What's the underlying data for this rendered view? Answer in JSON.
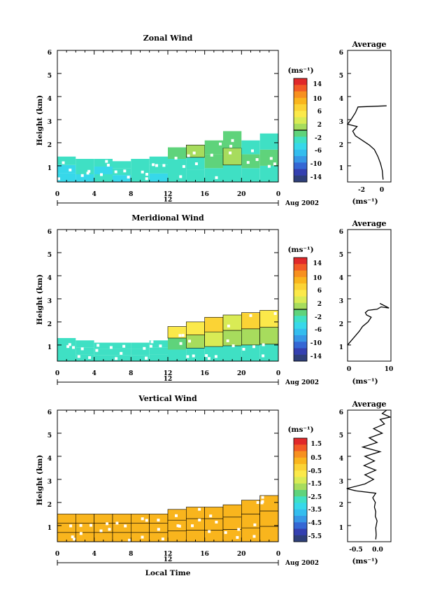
{
  "panels": [
    {
      "key": "zonal",
      "title": "Zonal Wind",
      "avg_title": "Average",
      "ylabel": "Height (km)",
      "xticks": [
        "0",
        "4",
        "8",
        "12",
        "16",
        "20",
        "0"
      ],
      "date_tick": "12",
      "date_label": "Aug 2002",
      "cbar_unit": "(ms⁻¹)",
      "cbar_ticks": [
        "14",
        "10",
        "6",
        "2",
        "-2",
        "-6",
        "-10",
        "-14"
      ],
      "avg_xticks": [
        "-2",
        "0"
      ],
      "avg_xlabel": "(ms⁻¹)"
    },
    {
      "key": "meridional",
      "title": "Meridional Wind",
      "avg_title": "Average",
      "ylabel": "Height (km)",
      "xticks": [
        "0",
        "4",
        "8",
        "12",
        "16",
        "20",
        "0"
      ],
      "date_tick": "12",
      "date_label": "Aug 2002",
      "cbar_unit": "(ms⁻¹)",
      "cbar_ticks": [
        "14",
        "10",
        "6",
        "2",
        "-2",
        "-6",
        "-10",
        "-14"
      ],
      "avg_xticks": [
        "0",
        "10"
      ],
      "avg_xlabel": "(ms⁻¹)"
    },
    {
      "key": "vertical",
      "title": "Vertical Wind",
      "avg_title": "Average",
      "ylabel": "Height (km)",
      "xticks": [
        "0",
        "4",
        "8",
        "12",
        "16",
        "20",
        "0"
      ],
      "date_tick": "12",
      "date_label": "Aug 2002",
      "cbar_unit": "(ms⁻¹)",
      "cbar_ticks": [
        "1.5",
        "0.5",
        "-0.5",
        "-1.5",
        "-2.5",
        "-3.5",
        "-4.5",
        "-5.5"
      ],
      "avg_xticks": [
        "-0.5",
        "0.0"
      ],
      "avg_xlabel": "(ms⁻¹)",
      "xlabel": "Local Time"
    }
  ],
  "yticks": [
    "1",
    "2",
    "3",
    "4",
    "5",
    "6"
  ],
  "colorbar_colors": [
    "#e0282a",
    "#f25a26",
    "#f7901f",
    "#f9b51d",
    "#fbd335",
    "#fbe94a",
    "#d9eb55",
    "#a7dc5d",
    "#5fd37b",
    "#3fe0c4",
    "#37d8ea",
    "#34bdee",
    "#3797e6",
    "#3567d4",
    "#3440b0",
    "#2e3f7a"
  ],
  "chart_data": [
    {
      "type": "heatmap",
      "title": "Zonal Wind",
      "xlabel": "",
      "ylabel": "Height (km)",
      "xlim": [
        0,
        24
      ],
      "ylim": [
        0.3,
        6
      ],
      "x_ticks": [
        0,
        4,
        8,
        12,
        16,
        20,
        24
      ],
      "colorbar_unit": "ms-1",
      "colorbar_range": [
        -16,
        16
      ],
      "colorbar_ticks": [
        14,
        10,
        6,
        2,
        -2,
        -6,
        -10,
        -14
      ],
      "contour_level": 0,
      "columns": [
        {
          "x": 0,
          "top": 1.4,
          "values": [
            -4,
            -4,
            -3
          ]
        },
        {
          "x": 2,
          "top": 1.3,
          "values": [
            -4,
            -3,
            -3
          ]
        },
        {
          "x": 4,
          "top": 1.3,
          "values": [
            -3,
            -4,
            -3
          ]
        },
        {
          "x": 6,
          "top": 1.2,
          "values": [
            -4,
            -3,
            -3
          ]
        },
        {
          "x": 8,
          "top": 1.3,
          "values": [
            -3,
            -3,
            -2
          ]
        },
        {
          "x": 10,
          "top": 1.4,
          "values": [
            -4,
            -2,
            -3
          ]
        },
        {
          "x": 12,
          "top": 1.8,
          "values": [
            -3,
            -2,
            -1
          ]
        },
        {
          "x": 14,
          "top": 1.9,
          "values": [
            -3,
            -2,
            1
          ]
        },
        {
          "x": 16,
          "top": 2.1,
          "values": [
            -2,
            -1,
            0
          ]
        },
        {
          "x": 18,
          "top": 2.5,
          "values": [
            -3,
            1,
            -1
          ]
        },
        {
          "x": 20,
          "top": 2.1,
          "values": [
            -2,
            -1,
            -2
          ]
        },
        {
          "x": 22,
          "top": 2.4,
          "values": [
            -3,
            0,
            -3
          ]
        }
      ]
    },
    {
      "type": "line",
      "title": "Average",
      "xlabel": "(ms-1)",
      "ylabel": "Height (km)",
      "xlim": [
        -4,
        1
      ],
      "ylim": [
        0.3,
        6
      ],
      "x": [
        0.1,
        0.0,
        -0.2,
        -0.5,
        -0.9,
        -1.5,
        -2.3,
        -3.1,
        -3.4,
        -2.9,
        -4.0,
        -3.6,
        -3.1,
        -2.8,
        0.5
      ],
      "y": [
        0.4,
        0.8,
        1.1,
        1.4,
        1.7,
        1.9,
        2.1,
        2.3,
        2.5,
        2.7,
        2.8,
        3.0,
        3.3,
        3.55,
        3.6
      ]
    },
    {
      "type": "heatmap",
      "title": "Meridional Wind",
      "xlabel": "",
      "ylabel": "Height (km)",
      "xlim": [
        0,
        24
      ],
      "ylim": [
        0.3,
        6
      ],
      "x_ticks": [
        0,
        4,
        8,
        12,
        16,
        20,
        24
      ],
      "colorbar_unit": "ms-1",
      "colorbar_range": [
        -16,
        16
      ],
      "colorbar_ticks": [
        14,
        10,
        6,
        2,
        -2,
        -6,
        -10,
        -14
      ],
      "contour_level": 0,
      "columns": [
        {
          "x": 0,
          "top": 1.3,
          "values": [
            -3,
            -3,
            -3
          ]
        },
        {
          "x": 2,
          "top": 1.2,
          "values": [
            -3,
            -3,
            -2
          ]
        },
        {
          "x": 4,
          "top": 1.1,
          "values": [
            -3,
            -3,
            -2
          ]
        },
        {
          "x": 6,
          "top": 1.1,
          "values": [
            -3,
            -3,
            -2
          ]
        },
        {
          "x": 8,
          "top": 1.1,
          "values": [
            -3,
            -2,
            -2
          ]
        },
        {
          "x": 10,
          "top": 1.2,
          "values": [
            -3,
            -2,
            -3
          ]
        },
        {
          "x": 12,
          "top": 1.8,
          "values": [
            -2,
            -1,
            5
          ]
        },
        {
          "x": 14,
          "top": 2.0,
          "values": [
            -2,
            1,
            6
          ]
        },
        {
          "x": 16,
          "top": 2.2,
          "values": [
            -2,
            3,
            8
          ]
        },
        {
          "x": 18,
          "top": 2.3,
          "values": [
            -3,
            2,
            4
          ]
        },
        {
          "x": 20,
          "top": 2.4,
          "values": [
            -2,
            1,
            7
          ]
        },
        {
          "x": 22,
          "top": 2.5,
          "values": [
            -3,
            2,
            5
          ]
        }
      ]
    },
    {
      "type": "line",
      "title": "Average",
      "xlabel": "(ms-1)",
      "ylabel": "Height (km)",
      "xlim": [
        0,
        11
      ],
      "ylim": [
        0.3,
        6
      ],
      "x": [
        0.0,
        1.0,
        2.0,
        3.0,
        3.8,
        5.2,
        6.0,
        4.8,
        4.5,
        5.2,
        7.5,
        8.5,
        10.5,
        8.2
      ],
      "y": [
        1.0,
        1.2,
        1.4,
        1.6,
        1.8,
        2.0,
        2.2,
        2.3,
        2.4,
        2.5,
        2.55,
        2.65,
        2.6,
        2.8
      ]
    },
    {
      "type": "heatmap",
      "title": "Vertical Wind",
      "xlabel": "Local Time",
      "ylabel": "Height (km)",
      "xlim": [
        0,
        24
      ],
      "ylim": [
        0.3,
        6
      ],
      "x_ticks": [
        0,
        4,
        8,
        12,
        16,
        20,
        24
      ],
      "colorbar_unit": "ms-1",
      "colorbar_range": [
        -6,
        2
      ],
      "colorbar_ticks": [
        1.5,
        0.5,
        -0.5,
        -1.5,
        -2.5,
        -3.5,
        -4.5,
        -5.5
      ],
      "columns": [
        {
          "x": 0,
          "top": 1.5,
          "values": [
            0.2,
            0.3,
            0.3
          ]
        },
        {
          "x": 2,
          "top": 1.5,
          "values": [
            0.3,
            0.2,
            0.3
          ]
        },
        {
          "x": 4,
          "top": 1.5,
          "values": [
            0.2,
            0.3,
            0.2
          ]
        },
        {
          "x": 6,
          "top": 1.5,
          "values": [
            0.3,
            0.3,
            0.2
          ]
        },
        {
          "x": 8,
          "top": 1.5,
          "values": [
            0.2,
            0.3,
            0.3
          ]
        },
        {
          "x": 10,
          "top": 1.5,
          "values": [
            0.4,
            0.2,
            0.3
          ]
        },
        {
          "x": 12,
          "top": 1.7,
          "values": [
            0.3,
            0.2,
            0.4
          ]
        },
        {
          "x": 14,
          "top": 1.8,
          "values": [
            0.2,
            0.3,
            0.2
          ]
        },
        {
          "x": 16,
          "top": 1.8,
          "values": [
            0.3,
            0.2,
            0.3
          ]
        },
        {
          "x": 18,
          "top": 1.9,
          "values": [
            0.3,
            0.4,
            0.2
          ]
        },
        {
          "x": 20,
          "top": 2.1,
          "values": [
            0.2,
            0.3,
            0.3
          ]
        },
        {
          "x": 22,
          "top": 2.3,
          "values": [
            0.3,
            0.2,
            0.4
          ]
        }
      ]
    },
    {
      "type": "line",
      "title": "Average",
      "xlabel": "(ms-1)",
      "ylabel": "Height (km)",
      "xlim": [
        -0.7,
        0.3
      ],
      "ylim": [
        0.3,
        6
      ],
      "x": [
        -0.05,
        -0.04,
        -0.05,
        -0.02,
        -0.06,
        -0.05,
        -0.08,
        -0.06,
        -0.12,
        -0.05,
        -0.5,
        -0.72,
        -0.3,
        -0.1,
        -0.3,
        -0.05,
        -0.32,
        -0.08,
        -0.3,
        0.05,
        -0.35,
        -0.02,
        -0.2,
        0.1,
        -0.1,
        0.15,
        0.05,
        0.28,
        0.1,
        0.2
      ],
      "y": [
        0.4,
        0.6,
        0.9,
        1.2,
        1.4,
        1.6,
        1.8,
        2.0,
        2.2,
        2.4,
        2.5,
        2.6,
        2.8,
        3.0,
        3.2,
        3.4,
        3.6,
        3.8,
        4.0,
        4.2,
        4.4,
        4.6,
        4.8,
        5.0,
        5.2,
        5.4,
        5.6,
        5.7,
        5.85,
        6.0
      ]
    }
  ]
}
